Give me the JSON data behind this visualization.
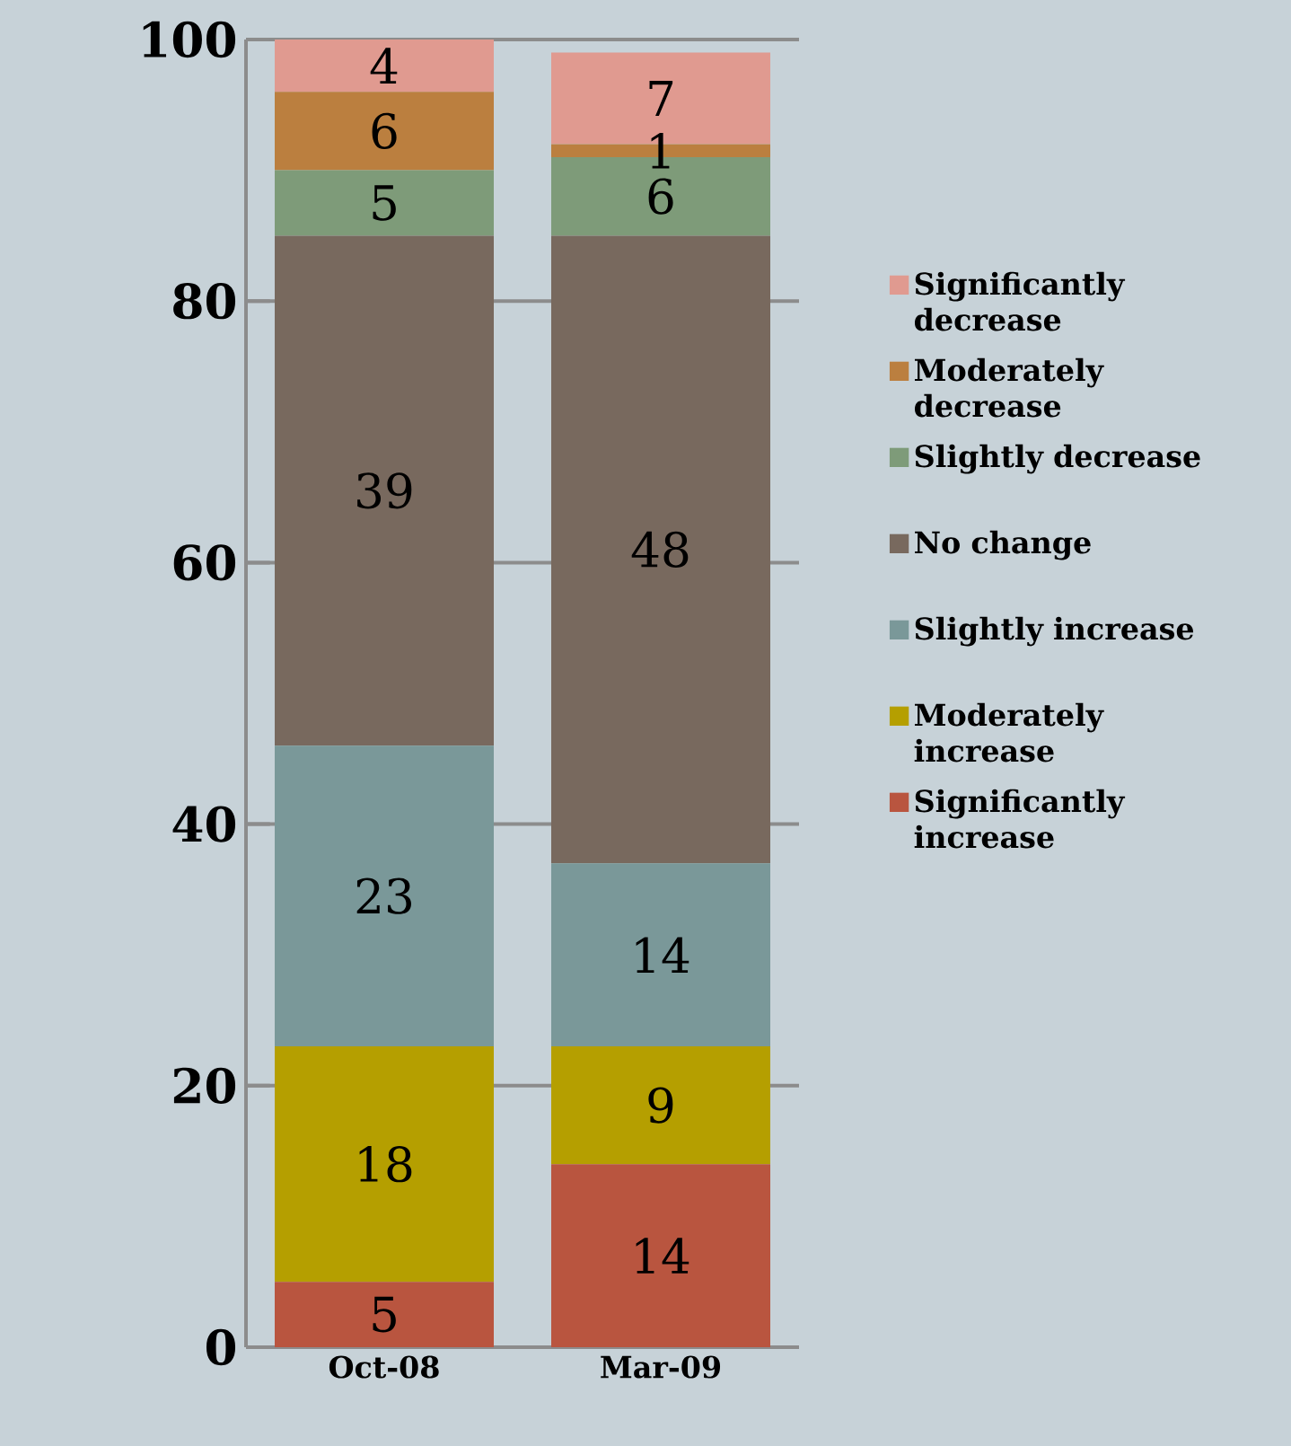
{
  "chart_data": {
    "type": "bar",
    "stacked": true,
    "categories": [
      "Oct-08",
      "Mar-09"
    ],
    "series": [
      {
        "name": "Significantly increase",
        "color": "#b9553f",
        "values": [
          5,
          14
        ]
      },
      {
        "name": "Moderately increase",
        "color": "#b59f00",
        "values": [
          18,
          9
        ]
      },
      {
        "name": "Slightly increase",
        "color": "#7a9899",
        "values": [
          23,
          14
        ]
      },
      {
        "name": "No change",
        "color": "#78695e",
        "values": [
          39,
          48
        ]
      },
      {
        "name": "Slightly decrease",
        "color": "#7e9b79",
        "values": [
          5,
          6
        ]
      },
      {
        "name": "Moderately decrease",
        "color": "#bb7f3f",
        "values": [
          6,
          1
        ]
      },
      {
        "name": "Significantly decrease",
        "color": "#e09a90",
        "values": [
          4,
          7
        ]
      }
    ],
    "ylim": [
      0,
      100
    ],
    "yticks": [
      0,
      20,
      40,
      60,
      80,
      100
    ],
    "grid": "y",
    "legend": "right",
    "data_labels": true
  }
}
